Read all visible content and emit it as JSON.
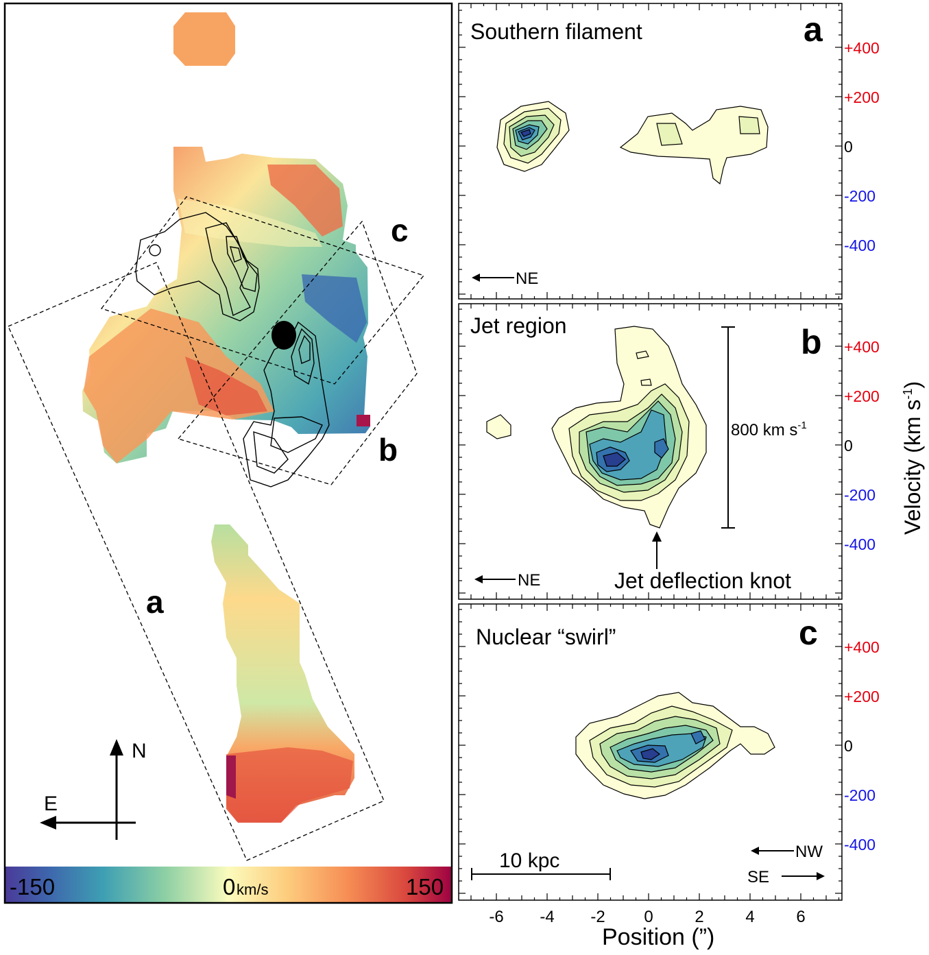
{
  "map": {
    "overlay_labels": [
      "c",
      "b",
      "a"
    ],
    "compass": {
      "north": "N",
      "east": "E"
    },
    "colorbar": {
      "min_label": "-150",
      "mid_label": "0",
      "unit": "km/s",
      "max_label": "150"
    }
  },
  "panels": [
    {
      "title": "Southern filament",
      "letter": "a",
      "direction": "NE"
    },
    {
      "title": "Jet region",
      "letter": "b",
      "direction": "NE",
      "scale_label": "800 km s",
      "scale_sup": "-1",
      "annotation": "Jet deflection knot"
    },
    {
      "title": "Nuclear “swirl”",
      "letter": "c",
      "directions": [
        "NW",
        "SE"
      ],
      "scalebar_label": "10 kpc"
    }
  ],
  "axes": {
    "xlabel": "Position (”)",
    "xticks": [
      "-6",
      "-4",
      "-2",
      "0",
      "2",
      "4",
      "6"
    ],
    "ylabel": "Velocity (km s",
    "ylabel_sup": "-1",
    "ylabel_end": ")",
    "yticks": [
      {
        "label": "+400",
        "color": "#e3000f"
      },
      {
        "label": "+200",
        "color": "#e3000f"
      },
      {
        "label": "0",
        "color": "#000000"
      },
      {
        "label": "-200",
        "color": "#1414e6"
      },
      {
        "label": "-400",
        "color": "#1414e6"
      }
    ]
  },
  "chart_data": [
    {
      "type": "heatmap",
      "title": "",
      "colorbar_range": [
        -150,
        150
      ],
      "colorbar_unit": "km/s",
      "regions": [
        "a",
        "b",
        "c"
      ]
    },
    {
      "type": "heatmap",
      "panel": "a",
      "title": "Southern filament",
      "xlabel": "Position (”)",
      "ylabel": "Velocity (km s-1)",
      "xlim": [
        -7.6,
        7.6
      ],
      "ylim": [
        -600,
        600
      ],
      "peaks": [
        {
          "x": -4.7,
          "y": 60
        },
        {
          "x": 1.2,
          "y": 60
        },
        {
          "x": 4.0,
          "y": 80
        }
      ]
    },
    {
      "type": "heatmap",
      "panel": "b",
      "title": "Jet region",
      "xlabel": "Position (”)",
      "ylabel": "Velocity (km s-1)",
      "xlim": [
        -7.6,
        7.6
      ],
      "ylim": [
        -600,
        600
      ],
      "peaks": [
        {
          "x": -1.2,
          "y": -70
        },
        {
          "x": 0.5,
          "y": 40
        },
        {
          "x": 0.4,
          "y": 200
        }
      ],
      "scale_bar_velocity": 800
    },
    {
      "type": "heatmap",
      "panel": "c",
      "title": "Nuclear “swirl”",
      "xlabel": "Position (”)",
      "ylabel": "Velocity (km s-1)",
      "xlim": [
        -7.6,
        7.6
      ],
      "ylim": [
        -600,
        600
      ],
      "peaks": [
        {
          "x": 0.0,
          "y": -40
        },
        {
          "x": 2.0,
          "y": 30
        }
      ]
    }
  ]
}
